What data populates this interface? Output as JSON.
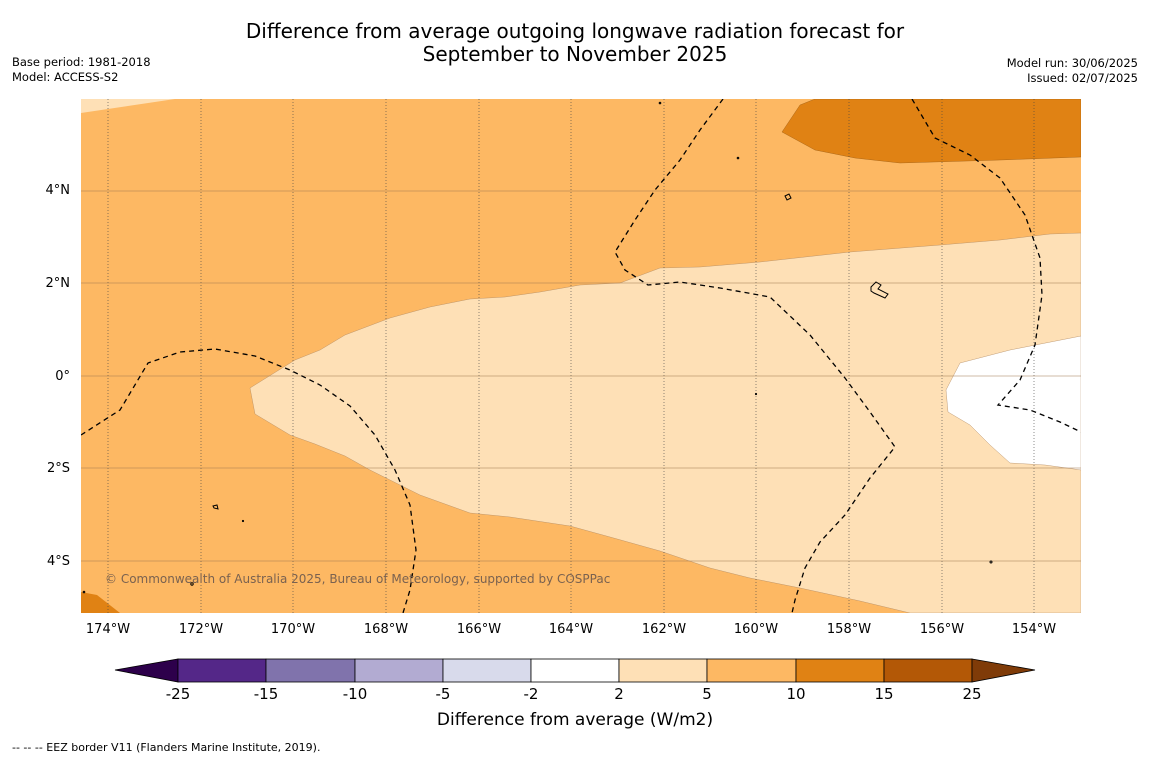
{
  "title_line1": "Difference from average outgoing longwave radiation forecast for",
  "title_line2": "September to November 2025",
  "meta_left": {
    "base_period": "Base period: 1981-2018",
    "model": "Model: ACCESS-S2"
  },
  "meta_right": {
    "model_run": "Model run: 30/06/2025",
    "issued": "Issued: 02/07/2025"
  },
  "copyright": "© Commonwealth of Australia 2025, Bureau of Meteorology, supported by COSPPac",
  "lat_labels": [
    "4°N",
    "2°N",
    "0°",
    "2°S",
    "4°S"
  ],
  "lon_labels": [
    "174°W",
    "172°W",
    "170°W",
    "168°W",
    "166°W",
    "164°W",
    "162°W",
    "160°W",
    "158°W",
    "156°W",
    "154°W"
  ],
  "colorbar": {
    "label": "Difference from average (W/m2)",
    "ticks": [
      "-25",
      "-15",
      "-10",
      "-5",
      "-2",
      "2",
      "5",
      "10",
      "15",
      "25"
    ],
    "colors": {
      "below_min": "#2d004b",
      "m25_m15": "#542788",
      "m15_m10": "#8073ac",
      "m10_m5": "#b2abd2",
      "m5_m2": "#d8daeb",
      "m2_2": "#ffffff",
      "p2_5": "#fee0b6",
      "p5_10": "#fdb863",
      "p10_15": "#e08214",
      "p15_25": "#b35806",
      "above_max": "#7f3b08"
    }
  },
  "footnote": "--  --  -- EEZ border V11 (Flanders Marine Institute, 2019)."
}
